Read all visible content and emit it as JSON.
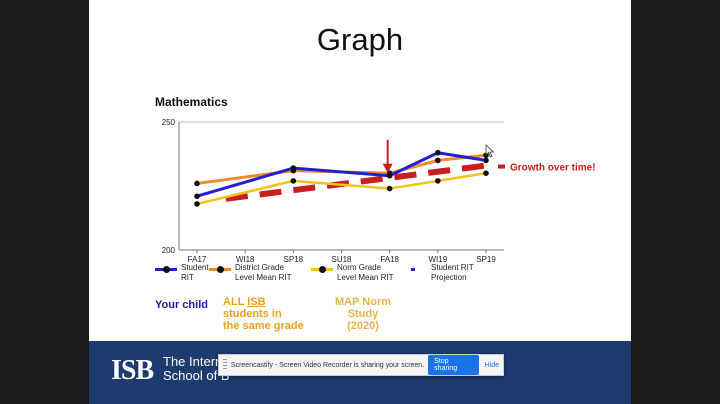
{
  "slide": {
    "title": "Graph",
    "chart_heading": "Mathematics",
    "growth_label": "Growth over time!"
  },
  "colors": {
    "student": "#2020d0",
    "district": "#f08a2a",
    "norm": "#f2c21c",
    "projection": "#c81e1e",
    "arrow": "#c81e1e",
    "footer": "#1e3a6e"
  },
  "chart_data": {
    "type": "line",
    "title": "Mathematics",
    "categories": [
      "FA17",
      "WI18",
      "SP18",
      "SU18",
      "FA18",
      "WI19",
      "SP19"
    ],
    "ylim": [
      200,
      250
    ],
    "yticks": [
      "250",
      "200"
    ],
    "series": [
      {
        "name": "Student RIT",
        "x": [
          0,
          2,
          4,
          5,
          6
        ],
        "values": [
          221,
          232,
          229,
          238,
          235
        ]
      },
      {
        "name": "District Grade Level Mean RIT",
        "x": [
          0,
          2,
          4,
          5,
          6
        ],
        "values": [
          226,
          231,
          230,
          235,
          237
        ]
      },
      {
        "name": "Norm Grade Level Mean RIT",
        "x": [
          0,
          2,
          4,
          5,
          6
        ],
        "values": [
          218,
          227,
          224,
          227,
          230
        ]
      },
      {
        "name": "Student RIT Projection",
        "x": [
          0.6,
          6
        ],
        "values": [
          220,
          233
        ]
      }
    ]
  },
  "legend": [
    {
      "label_line1": "Student",
      "label_line2": "RIT"
    },
    {
      "label_line1": "District Grade",
      "label_line2": "Level Mean RIT"
    },
    {
      "label_line1": "Norm Grade",
      "label_line2": "Level Mean RIT"
    },
    {
      "label_line1": "Student RIT",
      "label_line2": "Projection"
    }
  ],
  "annotations": {
    "your_child": "Your child",
    "all_isb_prefix": "ALL ",
    "all_isb_underlined": "ISB",
    "all_isb_line2": "students in",
    "all_isb_line3": "the same grade",
    "map_line1": "MAP Norm Study",
    "map_line2": "(2020)"
  },
  "footer": {
    "logo": "ISB",
    "name_line1": "The Interna",
    "name_line2": "School of B"
  },
  "share_bar": {
    "message": "Screencastify - Screen Video Recorder is sharing your screen.",
    "stop_label": "Stop sharing",
    "hide_label": "Hide"
  }
}
